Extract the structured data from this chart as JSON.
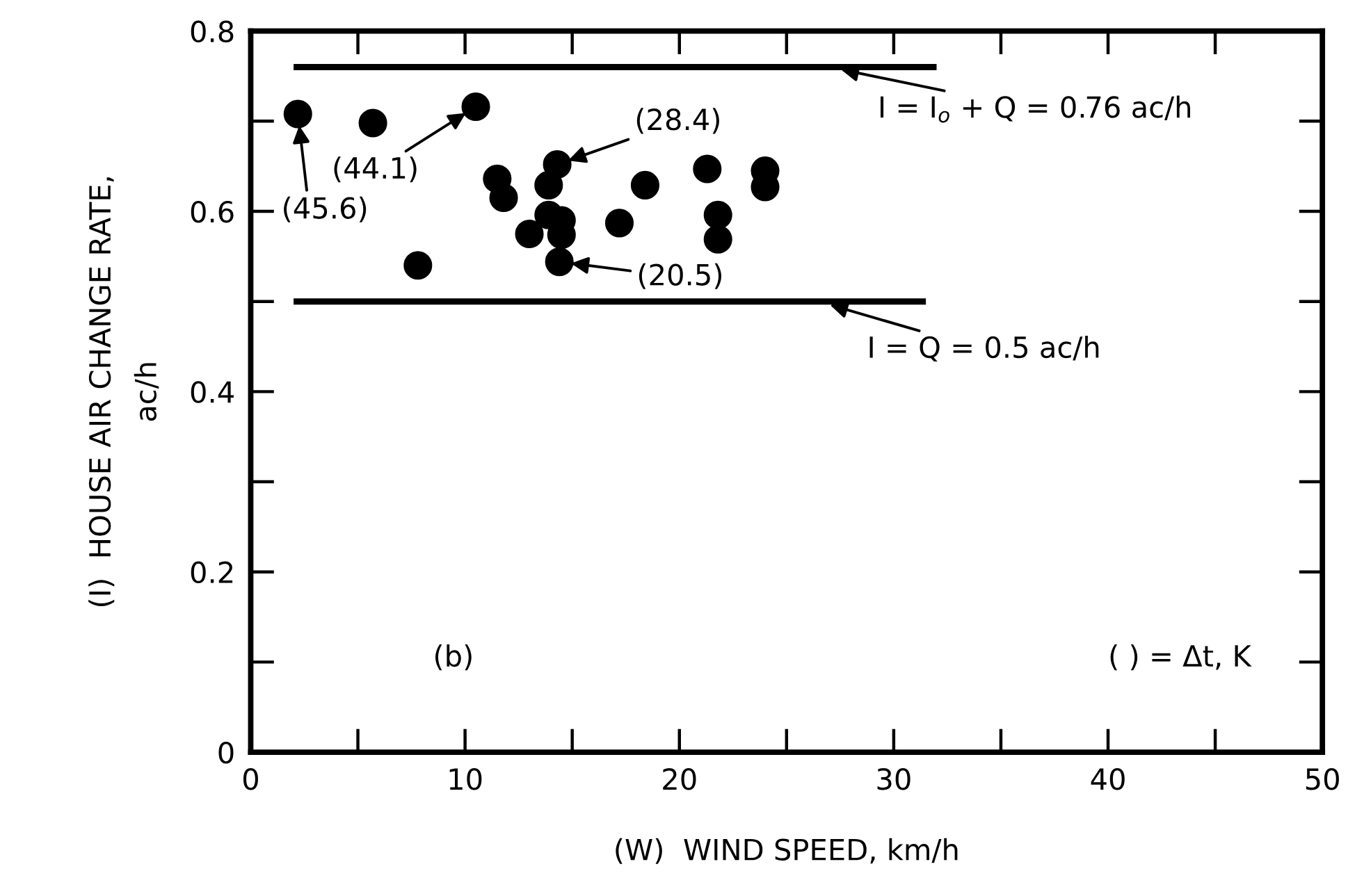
{
  "chart_data": {
    "type": "scatter",
    "xlabel": "(W)  WIND SPEED, km/h",
    "ylabel": "(I)  HOUSE AIR CHANGE RATE,\nac/h",
    "x": [
      2.2,
      5.7,
      10.5,
      11.5,
      11.8,
      7.8,
      13.0,
      14.3,
      13.9,
      13.9,
      14.5,
      14.5,
      14.4,
      17.2,
      18.4,
      21.3,
      21.8,
      21.8,
      24.0,
      24.0
    ],
    "series": [
      {
        "color": "#000000",
        "marker": "circle",
        "values": [
          0.708,
          0.698,
          0.716,
          0.636,
          0.615,
          0.54,
          0.575,
          0.652,
          0.629,
          0.596,
          0.59,
          0.574,
          0.544,
          0.587,
          0.629,
          0.647,
          0.596,
          0.569,
          0.645,
          0.627
        ]
      },
      {
        "type": "line",
        "color": "#000000",
        "marker": "none",
        "line_style": "solid",
        "x": [
          2,
          32
        ],
        "values": [
          0.76,
          0.76
        ]
      },
      {
        "type": "line",
        "color": "#000000",
        "marker": "none",
        "line_style": "solid",
        "x": [
          2,
          31.5
        ],
        "values": [
          0.5,
          0.5
        ]
      }
    ],
    "xlim": [
      0,
      50
    ],
    "ylim": [
      0,
      0.8
    ],
    "xticks": [
      0,
      10,
      20,
      30,
      40,
      50
    ],
    "yticks": [
      0,
      0.2,
      0.4,
      0.6,
      0.8
    ],
    "grid": false,
    "legend": false,
    "annotations": [
      {
        "text": "(45.6)",
        "x": 2.2,
        "y": 0.708
      },
      {
        "text": "(44.1)",
        "x": 10.5,
        "y": 0.716
      },
      {
        "text": "(28.4)",
        "x": 14.3,
        "y": 0.652
      },
      {
        "text": "(20.5)",
        "x": 14.4,
        "y": 0.544
      },
      {
        "text": "I = I$_{o}$ + Q = 0.76 ac/h",
        "x": 27,
        "y": 0.76
      },
      {
        "text": "I = Q = 0.5 ac/h",
        "x": 26.5,
        "y": 0.5
      },
      "(b)",
      "( ) = Δt, K"
    ]
  }
}
